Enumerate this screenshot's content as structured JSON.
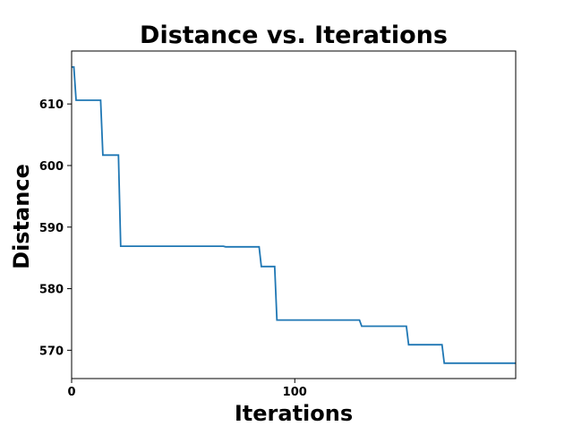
{
  "chart_data": {
    "type": "line",
    "title": "Distance vs. Iterations",
    "xlabel": "Iterations",
    "ylabel": "Distance",
    "xlim": [
      0,
      199
    ],
    "ylim": [
      565.4,
      618.6
    ],
    "xticks": [
      0,
      100
    ],
    "yticks": [
      570,
      580,
      590,
      600,
      610
    ],
    "grid": false,
    "line_color": "#1f77b4",
    "series": [
      {
        "x": [
          0,
          1,
          2,
          13,
          14,
          21,
          22,
          68,
          69,
          84,
          85,
          91,
          92,
          129,
          130,
          150,
          151,
          166,
          167,
          199
        ],
        "y": [
          616,
          616,
          610.6,
          610.6,
          601.7,
          601.7,
          586.9,
          586.9,
          586.8,
          586.8,
          583.6,
          583.6,
          574.9,
          574.9,
          573.9,
          573.9,
          570.9,
          570.9,
          567.9,
          567.9
        ]
      }
    ]
  }
}
